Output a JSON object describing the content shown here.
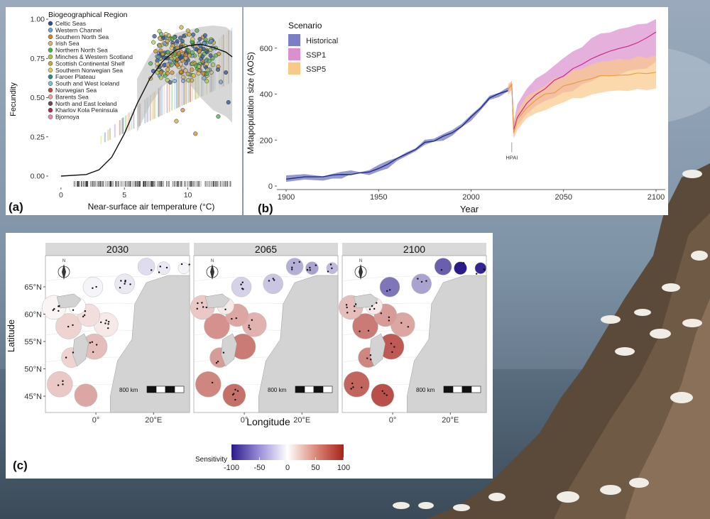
{
  "panel_a": {
    "label": "(a)",
    "chart_data": {
      "type": "scatter",
      "title": "",
      "xlabel": "Near-surface air temperature (°C)",
      "ylabel": "Fecundity",
      "xlim": [
        -1,
        14
      ],
      "ylim": [
        0,
        1
      ],
      "x_ticks": [
        "0",
        "5",
        "10"
      ],
      "y_ticks": [
        "0.00",
        "0.25",
        "0.50",
        "0.75",
        "1.00"
      ],
      "legend_title": "Biogeographical Region",
      "legend_position": "top-left",
      "regions": [
        {
          "name": "Celtic Seas",
          "color": "#2f4f8f"
        },
        {
          "name": "Western Channel",
          "color": "#6ea0d8"
        },
        {
          "name": "Southern North Sea",
          "color": "#d08a2a"
        },
        {
          "name": "Irish Sea",
          "color": "#d8b27a"
        },
        {
          "name": "Northern North Sea",
          "color": "#4caf50"
        },
        {
          "name": "Minches & Western Scotland",
          "color": "#a8c84a"
        },
        {
          "name": "Scottish Continental Shelf",
          "color": "#c5a93a"
        },
        {
          "name": "Southern Norwegian Sea",
          "color": "#e0c85a"
        },
        {
          "name": "Faroer Plateau",
          "color": "#2e8b8b"
        },
        {
          "name": "South and West Iceland",
          "color": "#7fbcd6"
        },
        {
          "name": "Norwegian Sea",
          "color": "#c0504d"
        },
        {
          "name": "Barents Sea",
          "color": "#e8a0a0"
        },
        {
          "name": "North and East Iceland",
          "color": "#555555"
        },
        {
          "name": "Kharlov Kola Peninsula",
          "color": "#a0305a"
        },
        {
          "name": "Bjornoya",
          "color": "#e88ab0"
        }
      ],
      "curve": {
        "name": "fitted fecundity",
        "x": [
          0,
          2,
          3,
          4,
          5,
          6,
          7,
          8,
          9,
          10,
          11,
          12,
          13,
          13.5
        ],
        "y": [
          0.0,
          0.01,
          0.04,
          0.12,
          0.27,
          0.46,
          0.62,
          0.73,
          0.8,
          0.83,
          0.84,
          0.82,
          0.79,
          0.76
        ]
      },
      "ribbon": {
        "x": [
          6,
          7,
          8,
          9,
          10,
          11,
          12,
          13,
          13.5
        ],
        "lower": [
          0.28,
          0.45,
          0.57,
          0.63,
          0.6,
          0.5,
          0.42,
          0.38,
          0.34
        ],
        "upper": [
          0.62,
          0.77,
          0.86,
          0.91,
          0.93,
          0.95,
          0.96,
          0.95,
          0.92
        ]
      },
      "outliers": [
        {
          "x": 10.6,
          "y": 0.27,
          "region": 2
        },
        {
          "x": 9.6,
          "y": 0.42,
          "region": 2
        },
        {
          "x": 9.1,
          "y": 0.35,
          "region": 6
        },
        {
          "x": 12.4,
          "y": 0.38,
          "region": 4
        },
        {
          "x": 13.2,
          "y": 0.47,
          "region": 0
        },
        {
          "x": 12.6,
          "y": 0.6,
          "region": 1
        },
        {
          "x": 13.0,
          "y": 0.66,
          "region": 0
        }
      ]
    }
  },
  "panel_b": {
    "label": "(b)",
    "chart_data": {
      "type": "line",
      "title": "",
      "xlabel": "Year",
      "ylabel": "Metapopulation size (AOS)",
      "xlim": [
        1895,
        2105
      ],
      "ylim": [
        0,
        760
      ],
      "x_ticks": [
        "1900",
        "1950",
        "2000",
        "2050",
        "2100"
      ],
      "y_ticks": [
        "0",
        "200",
        "400",
        "600"
      ],
      "legend_title": "Scenario",
      "legend_position": "top-left",
      "annotation": {
        "text": "HPAI",
        "x": 2022,
        "y": 190
      },
      "series": [
        {
          "name": "Historical",
          "color": "#1f2a8a",
          "fill": "#7b7fc4",
          "x": [
            1900,
            1910,
            1920,
            1925,
            1930,
            1935,
            1940,
            1945,
            1950,
            1955,
            1960,
            1965,
            1970,
            1975,
            1980,
            1985,
            1990,
            1995,
            2000,
            2005,
            2010,
            2015,
            2020
          ],
          "y": [
            30,
            33,
            38,
            42,
            50,
            55,
            58,
            65,
            75,
            95,
            120,
            140,
            160,
            185,
            200,
            215,
            230,
            265,
            300,
            340,
            380,
            400,
            415
          ]
        },
        {
          "name": "SSP1",
          "color": "#c8238a",
          "fill": "#dc8fce",
          "x": [
            2020,
            2022,
            2023,
            2025,
            2030,
            2035,
            2040,
            2045,
            2050,
            2055,
            2060,
            2065,
            2070,
            2075,
            2080,
            2085,
            2090,
            2095,
            2100
          ],
          "y": [
            420,
            440,
            240,
            300,
            360,
            400,
            430,
            460,
            480,
            505,
            530,
            555,
            570,
            585,
            595,
            610,
            625,
            640,
            670
          ],
          "lower": [
            400,
            420,
            210,
            260,
            310,
            345,
            370,
            390,
            405,
            420,
            440,
            460,
            470,
            480,
            490,
            500,
            510,
            520,
            540
          ],
          "upper": [
            440,
            460,
            280,
            350,
            420,
            460,
            490,
            520,
            550,
            580,
            610,
            640,
            655,
            670,
            680,
            690,
            700,
            710,
            720
          ]
        },
        {
          "name": "SSP5",
          "color": "#e89a3a",
          "fill": "#f9c98a",
          "x": [
            2020,
            2022,
            2023,
            2025,
            2030,
            2035,
            2040,
            2045,
            2050,
            2055,
            2060,
            2065,
            2070,
            2075,
            2080,
            2085,
            2090,
            2095,
            2100
          ],
          "y": [
            420,
            440,
            230,
            290,
            340,
            370,
            395,
            410,
            430,
            445,
            460,
            470,
            475,
            480,
            485,
            485,
            488,
            490,
            495
          ],
          "lower": [
            400,
            420,
            205,
            250,
            290,
            315,
            335,
            350,
            365,
            375,
            385,
            395,
            400,
            405,
            410,
            412,
            415,
            418,
            420
          ],
          "upper": [
            440,
            460,
            260,
            330,
            390,
            420,
            445,
            465,
            480,
            500,
            515,
            530,
            540,
            545,
            550,
            555,
            560,
            562,
            565
          ]
        }
      ]
    }
  },
  "panel_c": {
    "label": "(c)",
    "chart_data": {
      "type": "heatmap",
      "titles": [
        "2030",
        "2065",
        "2100"
      ],
      "xlabel": "Longitude",
      "ylabel": "Latitude",
      "lat_ticks": [
        "65°N",
        "60°N",
        "55°N",
        "50°N",
        "45°N"
      ],
      "lon_ticks": [
        "0°",
        "20°E"
      ],
      "scale_text": "800 km",
      "north_label": "N",
      "legend_title": "Sensitivity",
      "legend_position": "bottom",
      "legend_ticks": [
        "-100",
        "-50",
        "0",
        "50",
        "100"
      ],
      "color_scale": {
        "low": "#2a1a8a",
        "mid": "#ffffff",
        "high": "#a8231a",
        "range": [
          -100,
          100
        ]
      },
      "regions": [
        "Celtic Seas",
        "Irish Sea",
        "Southern North Sea",
        "Northern North Sea",
        "Minches & Western Scotland",
        "Scottish Continental Shelf",
        "Western Channel",
        "South and West Iceland",
        "North and East Iceland",
        "Faroer Plateau",
        "Norwegian Sea",
        "Barents Sea",
        "Kharlov Kola Peninsula",
        "Bjornoya"
      ],
      "values": {
        "2030": [
          25,
          20,
          30,
          10,
          20,
          15,
          40,
          5,
          -5,
          0,
          -10,
          -15,
          -10,
          -5
        ],
        "2065": [
          55,
          45,
          60,
          35,
          50,
          40,
          65,
          25,
          -20,
          10,
          -25,
          -35,
          -40,
          -30
        ],
        "2100": [
          70,
          55,
          75,
          40,
          60,
          45,
          80,
          30,
          -60,
          10,
          -40,
          -70,
          -100,
          -95
        ]
      }
    }
  }
}
